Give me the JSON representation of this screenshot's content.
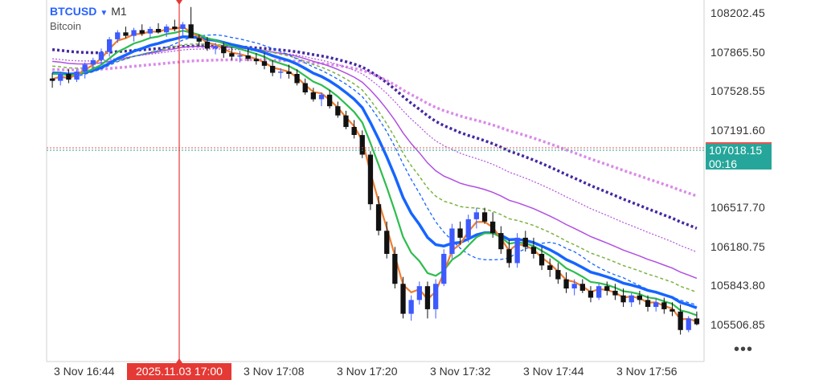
{
  "header": {
    "symbol": "BTCUSD",
    "dropdown_icon": "triangle-down-icon",
    "timeframe": "M1",
    "description": "Bitcoin"
  },
  "price_axis": {
    "labels": [
      "108202.45",
      "107865.50",
      "107528.55",
      "107191.60",
      "106517.70",
      "106180.75",
      "105843.80",
      "105506.85"
    ],
    "current_price": "107018.15",
    "countdown": "00:16"
  },
  "time_axis": {
    "labels": [
      "3 Nov 16:44",
      "3 Nov 17:08",
      "3 Nov 17:20",
      "3 Nov 17:32",
      "3 Nov 17:44",
      "3 Nov 17:56"
    ],
    "highlighted": "2025.11.03 17:00"
  },
  "more_menu": {
    "label": "•••",
    "icon": "more-dots-icon"
  },
  "colors": {
    "bull": "#3d5afe",
    "bear": "#111111",
    "ma_orange": "#ef7d31",
    "ma_green": "#2dbd4e",
    "ma_blue": "#1565ff",
    "ma_purple": "#b14fe0",
    "ma_navy": "#4527a0",
    "ma_pink": "#d98be8",
    "crosshair": "#e53935",
    "current": "#26a69a"
  },
  "chart_data": {
    "type": "candlestick",
    "symbol": "BTCUSD",
    "timeframe": "M1",
    "y_axis_ticks": [
      108202.45,
      107865.5,
      107528.55,
      107191.6,
      106517.7,
      106180.75,
      105843.8,
      105506.85
    ],
    "ylim": [
      105300,
      108330
    ],
    "current_price": 107018.15,
    "x_axis_ticks": [
      "3 Nov 16:44",
      "3 Nov 17:08",
      "3 Nov 17:20",
      "3 Nov 17:32",
      "3 Nov 17:44",
      "3 Nov 17:56"
    ],
    "candles_ohlc": [
      [
        107640,
        107690,
        107560,
        107620
      ],
      [
        107620,
        107700,
        107580,
        107680
      ],
      [
        107680,
        107720,
        107600,
        107630
      ],
      [
        107630,
        107720,
        107610,
        107700
      ],
      [
        107700,
        107780,
        107640,
        107760
      ],
      [
        107760,
        107820,
        107720,
        107800
      ],
      [
        107800,
        107900,
        107760,
        107870
      ],
      [
        107870,
        108000,
        107830,
        107980
      ],
      [
        107980,
        108060,
        107950,
        108040
      ],
      [
        108040,
        108090,
        107990,
        108010
      ],
      [
        108010,
        108080,
        107960,
        108060
      ],
      [
        108060,
        108110,
        108010,
        108030
      ],
      [
        108030,
        108090,
        107990,
        108070
      ],
      [
        108070,
        108120,
        108030,
        108040
      ],
      [
        108040,
        108110,
        108000,
        108090
      ],
      [
        108090,
        108150,
        108050,
        108070
      ],
      [
        108070,
        108130,
        108010,
        108110
      ],
      [
        108110,
        108260,
        108060,
        107990
      ],
      [
        107990,
        108020,
        107920,
        107960
      ],
      [
        107960,
        108000,
        107880,
        107900
      ],
      [
        107900,
        107950,
        107850,
        107920
      ],
      [
        107920,
        107950,
        107820,
        107860
      ],
      [
        107860,
        107910,
        107800,
        107830
      ],
      [
        107830,
        107880,
        107780,
        107840
      ],
      [
        107840,
        107900,
        107790,
        107810
      ],
      [
        107810,
        107860,
        107760,
        107790
      ],
      [
        107790,
        107860,
        107720,
        107750
      ],
      [
        107750,
        107800,
        107660,
        107690
      ],
      [
        107690,
        107730,
        107640,
        107700
      ],
      [
        107700,
        107760,
        107640,
        107680
      ],
      [
        107680,
        107720,
        107580,
        107600
      ],
      [
        107600,
        107640,
        107500,
        107520
      ],
      [
        107520,
        107560,
        107440,
        107460
      ],
      [
        107460,
        107520,
        107400,
        107500
      ],
      [
        107500,
        107540,
        107380,
        107400
      ],
      [
        107400,
        107440,
        107300,
        107320
      ],
      [
        107320,
        107360,
        107200,
        107220
      ],
      [
        107220,
        107280,
        107120,
        107150
      ],
      [
        107150,
        107190,
        106950,
        106980
      ],
      [
        106980,
        107010,
        106500,
        106550
      ],
      [
        106550,
        106620,
        106280,
        106320
      ],
      [
        106320,
        106400,
        106080,
        106120
      ],
      [
        106120,
        106180,
        105820,
        105860
      ],
      [
        105860,
        105920,
        105560,
        105600
      ],
      [
        105600,
        105760,
        105540,
        105720
      ],
      [
        105720,
        105880,
        105680,
        105840
      ],
      [
        105840,
        105880,
        105560,
        105640
      ],
      [
        105640,
        105900,
        105560,
        105860
      ],
      [
        105860,
        106160,
        105840,
        106120
      ],
      [
        106120,
        106380,
        106080,
        106340
      ],
      [
        106340,
        106400,
        106200,
        106260
      ],
      [
        106260,
        106460,
        106220,
        106420
      ],
      [
        106420,
        106520,
        106340,
        106480
      ],
      [
        106480,
        106520,
        106380,
        106400
      ],
      [
        106400,
        106480,
        106260,
        106300
      ],
      [
        106300,
        106360,
        106120,
        106160
      ],
      [
        106160,
        106240,
        106000,
        106040
      ],
      [
        106040,
        106300,
        106000,
        106260
      ],
      [
        106260,
        106320,
        106140,
        106180
      ],
      [
        106180,
        106260,
        106080,
        106120
      ],
      [
        106120,
        106180,
        105980,
        106020
      ],
      [
        106020,
        106080,
        105920,
        105980
      ],
      [
        105980,
        106040,
        105860,
        105900
      ],
      [
        105900,
        105960,
        105780,
        105820
      ],
      [
        105820,
        105900,
        105760,
        105860
      ],
      [
        105860,
        105900,
        105780,
        105800
      ],
      [
        105800,
        105840,
        105700,
        105740
      ],
      [
        105740,
        105860,
        105720,
        105840
      ],
      [
        105840,
        105880,
        105760,
        105800
      ],
      [
        105800,
        105860,
        105720,
        105760
      ],
      [
        105760,
        105820,
        105660,
        105700
      ],
      [
        105700,
        105780,
        105660,
        105760
      ],
      [
        105760,
        105800,
        105680,
        105720
      ],
      [
        105720,
        105760,
        105620,
        105660
      ],
      [
        105660,
        105740,
        105620,
        105700
      ],
      [
        105700,
        105740,
        105600,
        105640
      ],
      [
        105640,
        105700,
        105580,
        105620
      ],
      [
        105620,
        105680,
        105420,
        105460
      ],
      [
        105460,
        105580,
        105440,
        105560
      ],
      [
        105560,
        105620,
        105500,
        105510
      ]
    ],
    "crosshair_time": "2025.11.03 17:00",
    "grid": false
  }
}
